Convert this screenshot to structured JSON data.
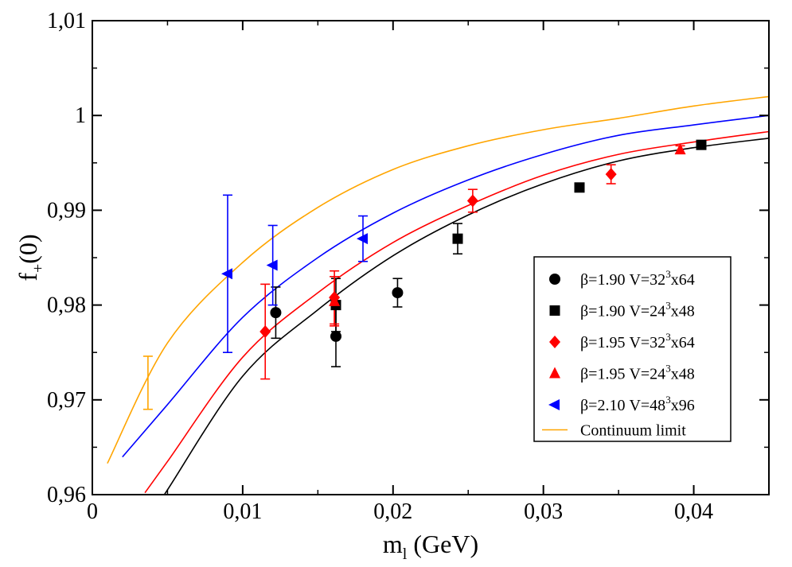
{
  "chart_data": {
    "type": "scatter",
    "title": "",
    "xlabel": {
      "main": "m",
      "sub": "l",
      "rest": " (GeV)"
    },
    "ylabel": {
      "main": "f",
      "sub": "+",
      "rest": "(0)"
    },
    "xlim": [
      0,
      0.045
    ],
    "ylim": [
      0.96,
      1.01
    ],
    "x_ticks": [
      0,
      0.01,
      0.02,
      0.03,
      0.04
    ],
    "x_tick_labels": [
      "0",
      "0,01",
      "0,02",
      "0,03",
      "0,04"
    ],
    "y_ticks": [
      0.96,
      0.97,
      0.98,
      0.99,
      1.0,
      1.01
    ],
    "y_tick_labels": [
      "0,96",
      "0,97",
      "0,98",
      "0,99",
      "1",
      "1,01"
    ],
    "grid": false,
    "legend_position": "lower-right",
    "series": [
      {
        "name": "β=1.90  V=32³x64",
        "label_pre": "β=1.90  V=32",
        "label_sup": "3",
        "label_post": "x64",
        "marker": "circle",
        "color": "#000000",
        "points": [
          {
            "x": 0.0122,
            "y": 0.9792,
            "err": 0.0027
          },
          {
            "x": 0.0162,
            "y": 0.9767,
            "err": 0.0032
          },
          {
            "x": 0.0203,
            "y": 0.9813,
            "err": 0.0015
          }
        ]
      },
      {
        "name": "β=1.90  V=24³x48",
        "label_pre": "β=1.90  V=24",
        "label_sup": "3",
        "label_post": "x48",
        "marker": "square",
        "color": "#000000",
        "points": [
          {
            "x": 0.0162,
            "y": 0.98,
            "err": 0.0028
          },
          {
            "x": 0.0243,
            "y": 0.987,
            "err": 0.0016
          },
          {
            "x": 0.0324,
            "y": 0.9924,
            "err": 0.0004
          },
          {
            "x": 0.0405,
            "y": 0.9969,
            "err": 0.0004
          }
        ]
      },
      {
        "name": "β=1.95  V=32³x64",
        "label_pre": "β=1.95  V=32",
        "label_sup": "3",
        "label_post": "x64",
        "marker": "diamond",
        "color": "#ff0000",
        "points": [
          {
            "x": 0.0115,
            "y": 0.9772,
            "err": 0.005
          },
          {
            "x": 0.0161,
            "y": 0.9808,
            "err": 0.0028
          },
          {
            "x": 0.0253,
            "y": 0.991,
            "err": 0.0012
          },
          {
            "x": 0.0345,
            "y": 0.9938,
            "err": 0.001
          }
        ]
      },
      {
        "name": "β=1.95  V=24³x48",
        "label_pre": "β=1.95  V=24",
        "label_sup": "3",
        "label_post": "x48",
        "marker": "triangle-up",
        "color": "#ff0000",
        "points": [
          {
            "x": 0.0161,
            "y": 0.9804,
            "err": 0.0026
          },
          {
            "x": 0.0391,
            "y": 0.9964,
            "err": 0.0004
          }
        ]
      },
      {
        "name": "β=2.10  V=48³x96",
        "label_pre": "β=2.10  V=48",
        "label_sup": "3",
        "label_post": "x96",
        "marker": "triangle-left",
        "color": "#0000ff",
        "points": [
          {
            "x": 0.009,
            "y": 0.9833,
            "err": 0.0083
          },
          {
            "x": 0.012,
            "y": 0.9842,
            "err": 0.0042
          },
          {
            "x": 0.018,
            "y": 0.987,
            "err": 0.0024
          }
        ]
      },
      {
        "name": "Continuum limit",
        "label_pre": "Continuum limit",
        "label_sup": "",
        "label_post": "",
        "marker": "line",
        "color": "#ffa500",
        "points": [
          {
            "x": 0.0037,
            "y": 0.9718,
            "err": 0.0028
          }
        ]
      }
    ],
    "fit_curves": [
      {
        "name": "β=1.90 fit",
        "color": "#000000",
        "x_start": 0.004,
        "x_end": 0.045,
        "x": [
          0.005,
          0.01,
          0.015,
          0.02,
          0.025,
          0.03,
          0.035,
          0.04,
          0.045
        ],
        "y": [
          0.9605,
          0.9725,
          0.9795,
          0.9852,
          0.9895,
          0.9928,
          0.9952,
          0.9966,
          0.9976
        ]
      },
      {
        "name": "β=1.95 fit",
        "color": "#ff0000",
        "x_start": 0.0035,
        "x_end": 0.045,
        "x": [
          0.005,
          0.01,
          0.015,
          0.02,
          0.025,
          0.03,
          0.035,
          0.04,
          0.045
        ],
        "y": [
          0.9635,
          0.9745,
          0.9813,
          0.9866,
          0.9905,
          0.9937,
          0.9959,
          0.9972,
          0.9983
        ]
      },
      {
        "name": "β=2.10 fit",
        "color": "#0000ff",
        "x_start": 0.002,
        "x_end": 0.045,
        "x": [
          0.005,
          0.01,
          0.015,
          0.02,
          0.025,
          0.03,
          0.035,
          0.04,
          0.045
        ],
        "y": [
          0.9695,
          0.9787,
          0.985,
          0.9897,
          0.9932,
          0.9959,
          0.9979,
          0.999,
          1.0
        ]
      },
      {
        "name": "Continuum limit",
        "color": "#ffa500",
        "x_start": 0.001,
        "x_end": 0.045,
        "x": [
          0.001,
          0.005,
          0.01,
          0.015,
          0.02,
          0.025,
          0.03,
          0.035,
          0.04,
          0.045
        ],
        "y": [
          0.9633,
          0.976,
          0.9845,
          0.9903,
          0.9943,
          0.9968,
          0.9985,
          0.9997,
          1.001,
          1.002
        ]
      }
    ]
  }
}
